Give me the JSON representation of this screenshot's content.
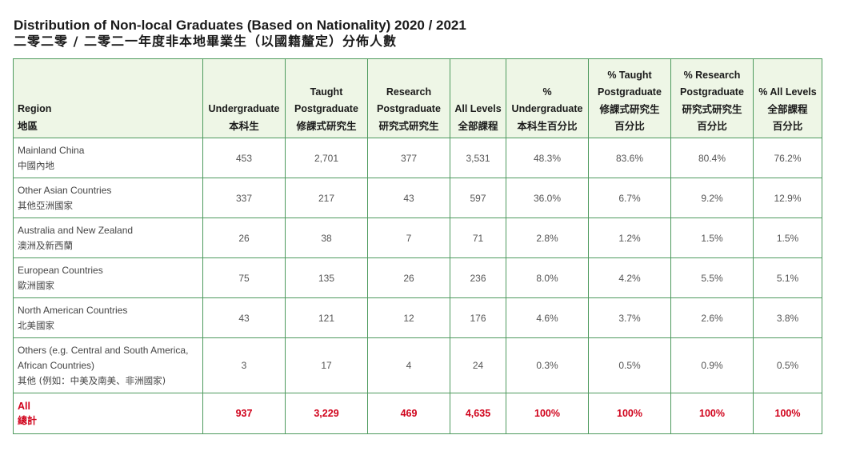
{
  "title": {
    "en": "Distribution of Non-local Graduates (Based on Nationality) 2020 / 2021",
    "zh": "二零二零 / 二零二一年度非本地畢業生（以國籍釐定）分佈人數"
  },
  "header": {
    "region": {
      "en": "Region",
      "zh": "地區"
    },
    "undergraduate": {
      "en": "Undergraduate",
      "zh": "本科生"
    },
    "taught_pg": {
      "en1": "Taught",
      "en2": "Postgraduate",
      "zh": "修課式研究生"
    },
    "research_pg": {
      "en1": "Research",
      "en2": "Postgraduate",
      "zh": "研究式研究生"
    },
    "all_levels": {
      "en": "All Levels",
      "zh": "全部課程"
    },
    "pct_ug": {
      "en1": "%",
      "en2": "Undergraduate",
      "zh": "本科生百分比"
    },
    "pct_tpg": {
      "en1": "% Taught",
      "en2": "Postgraduate",
      "zh1": "修課式研究生",
      "zh2": "百分比"
    },
    "pct_rpg": {
      "en1": "% Research",
      "en2": "Postgraduate",
      "zh1": "研究式研究生",
      "zh2": "百分比"
    },
    "pct_all": {
      "en1": "% All Levels",
      "zh1": "全部課程",
      "zh2": "百分比"
    }
  },
  "rows": [
    {
      "region_en": "Mainland China",
      "region_zh": "中國內地",
      "ug": "453",
      "tpg": "2,701",
      "rpg": "377",
      "all": "3,531",
      "pct_ug": "48.3%",
      "pct_tpg": "83.6%",
      "pct_rpg": "80.4%",
      "pct_all": "76.2%"
    },
    {
      "region_en": "Other Asian Countries",
      "region_zh": "其他亞洲國家",
      "ug": "337",
      "tpg": "217",
      "rpg": "43",
      "all": "597",
      "pct_ug": "36.0%",
      "pct_tpg": "6.7%",
      "pct_rpg": "9.2%",
      "pct_all": "12.9%"
    },
    {
      "region_en": "Australia and New Zealand",
      "region_zh": "澳洲及新西蘭",
      "ug": "26",
      "tpg": "38",
      "rpg": "7",
      "all": "71",
      "pct_ug": "2.8%",
      "pct_tpg": "1.2%",
      "pct_rpg": "1.5%",
      "pct_all": "1.5%"
    },
    {
      "region_en": "European Countries",
      "region_zh": "歐洲國家",
      "ug": "75",
      "tpg": "135",
      "rpg": "26",
      "all": "236",
      "pct_ug": "8.0%",
      "pct_tpg": "4.2%",
      "pct_rpg": "5.5%",
      "pct_all": "5.1%"
    },
    {
      "region_en": "North American Countries",
      "region_zh": "北美國家",
      "ug": "43",
      "tpg": "121",
      "rpg": "12",
      "all": "176",
      "pct_ug": "4.6%",
      "pct_tpg": "3.7%",
      "pct_rpg": "2.6%",
      "pct_all": "3.8%"
    },
    {
      "region_en_1": "Others (e.g. Central and South America,",
      "region_en_2": "African Countries)",
      "region_zh": "其他 (例如：中美及南美、非洲國家)",
      "ug": "3",
      "tpg": "17",
      "rpg": "4",
      "all": "24",
      "pct_ug": "0.3%",
      "pct_tpg": "0.5%",
      "pct_rpg": "0.9%",
      "pct_all": "0.5%"
    }
  ],
  "total": {
    "region_en": "All",
    "region_zh": "總計",
    "ug": "937",
    "tpg": "3,229",
    "rpg": "469",
    "all": "4,635",
    "pct_ug": "100%",
    "pct_tpg": "100%",
    "pct_rpg": "100%",
    "pct_all": "100%"
  },
  "colors": {
    "border": "#4e9a5e",
    "header_bg": "#eef6e6",
    "total_text": "#d0021b"
  }
}
